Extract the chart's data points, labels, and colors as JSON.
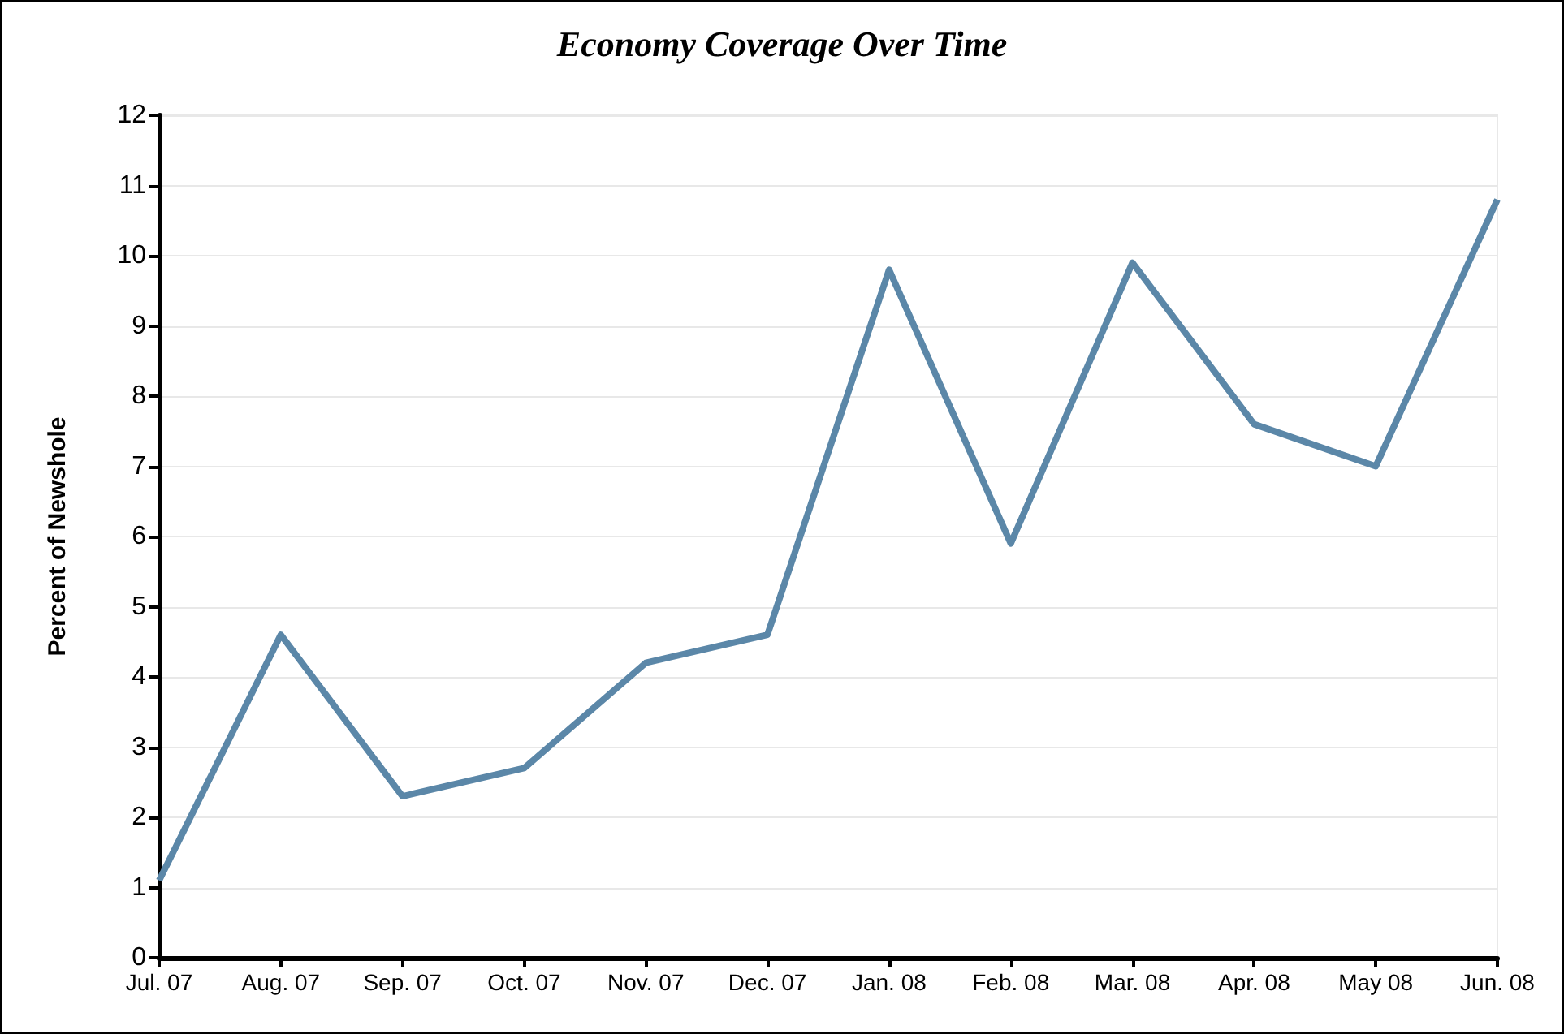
{
  "chart_data": {
    "type": "line",
    "title": "Economy Coverage Over Time",
    "ylabel": "Percent of Newshole",
    "categories": [
      "Jul. 07",
      "Aug. 07",
      "Sep. 07",
      "Oct. 07",
      "Nov. 07",
      "Dec. 07",
      "Jan. 08",
      "Feb. 08",
      "Mar. 08",
      "Apr. 08",
      "May 08",
      "Jun. 08"
    ],
    "series": [
      {
        "color": "#5b87a8",
        "values": [
          1.1,
          4.6,
          2.3,
          2.7,
          4.2,
          4.6,
          9.8,
          5.9,
          9.9,
          7.6,
          7.0,
          10.8
        ]
      }
    ],
    "ylim": [
      0,
      12
    ],
    "yticks": [
      0,
      1,
      2,
      3,
      4,
      5,
      6,
      7,
      8,
      9,
      10,
      11,
      12
    ],
    "grid": "y",
    "marker": "none",
    "line_style": "solid"
  }
}
